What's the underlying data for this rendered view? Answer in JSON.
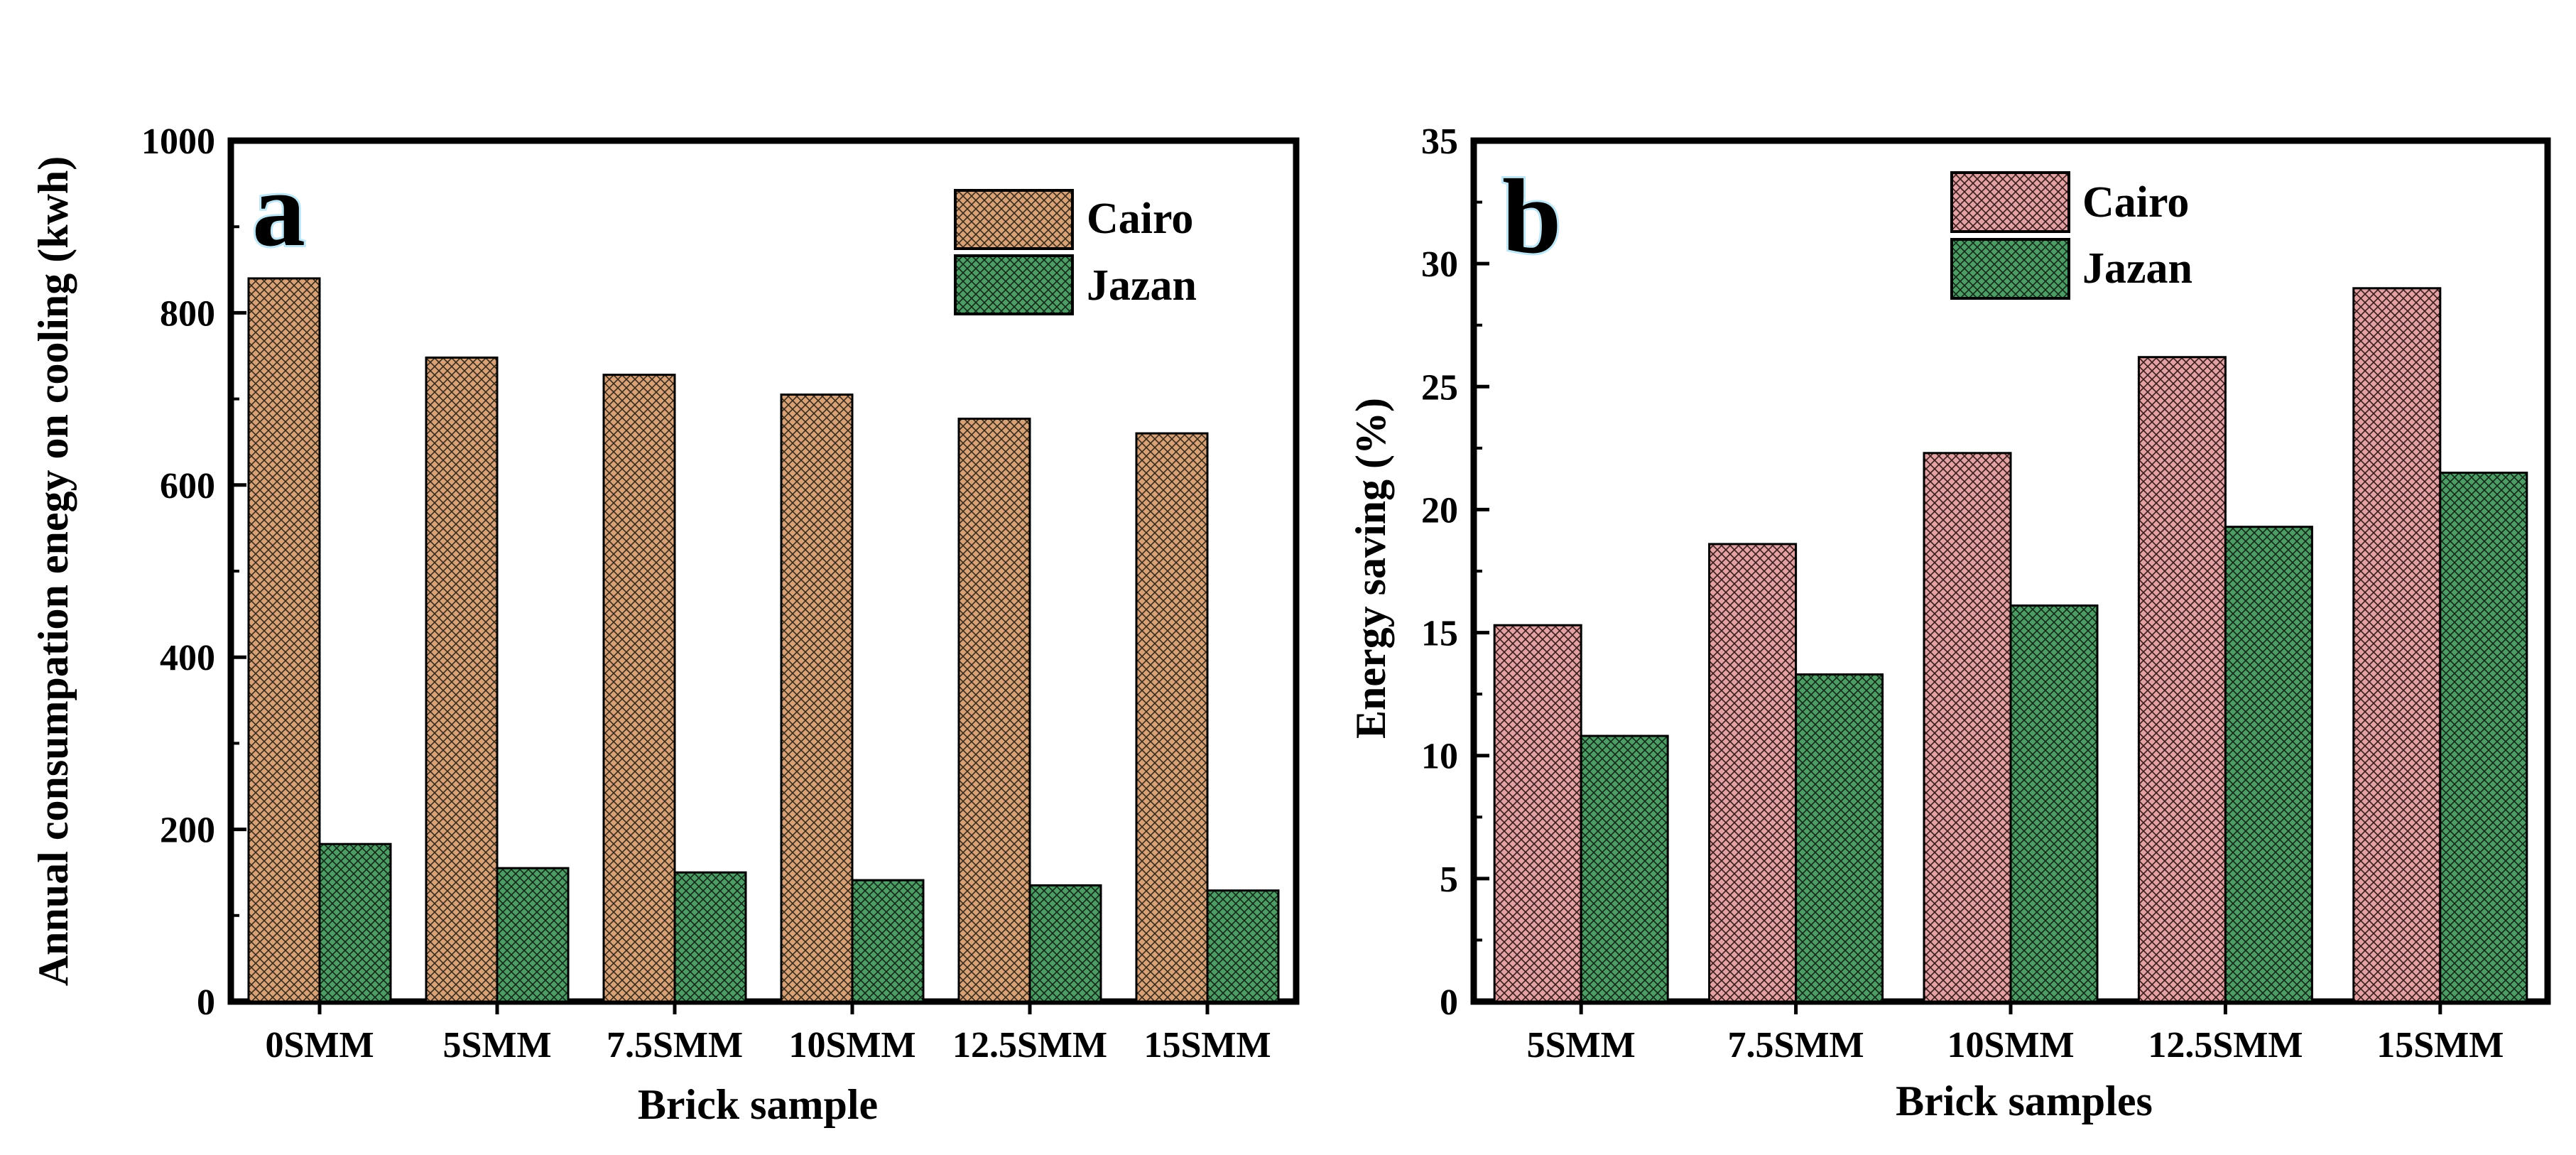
{
  "chart_data": [
    {
      "type": "bar",
      "panel_label": "a",
      "title": "",
      "xlabel": "Brick sample",
      "ylabel": "Annual consumpation enegy on cooling (kwh)",
      "categories": [
        "0SMM",
        "5SMM",
        "7.5SMM",
        "10SMM",
        "12.5SMM",
        "15SMM"
      ],
      "ylim": [
        0,
        1000
      ],
      "yticks": [
        0,
        200,
        400,
        600,
        800,
        1000
      ],
      "legend_position": "top-right",
      "series": [
        {
          "name": "Cairo",
          "values": [
            840,
            748,
            728,
            705,
            677,
            660
          ],
          "color": "#d7a278"
        },
        {
          "name": "Jazan",
          "values": [
            183,
            155,
            150,
            141,
            135,
            129
          ],
          "color": "#4e9c66"
        }
      ]
    },
    {
      "type": "bar",
      "panel_label": "b",
      "title": "",
      "xlabel": "Brick samples",
      "ylabel": "Energy saving (%)",
      "categories": [
        "5SMM",
        "7.5SMM",
        "10SMM",
        "12.5SMM",
        "15SMM"
      ],
      "ylim": [
        0,
        35
      ],
      "yticks": [
        0,
        5,
        10,
        15,
        20,
        25,
        30,
        35
      ],
      "legend_position": "top-left",
      "series": [
        {
          "name": "Cairo",
          "values": [
            15.3,
            18.6,
            22.3,
            26.2,
            29.0
          ],
          "color": "#e2a2a4"
        },
        {
          "name": "Jazan",
          "values": [
            10.8,
            13.3,
            16.1,
            19.3,
            21.5
          ],
          "color": "#4e9c66"
        }
      ]
    }
  ]
}
